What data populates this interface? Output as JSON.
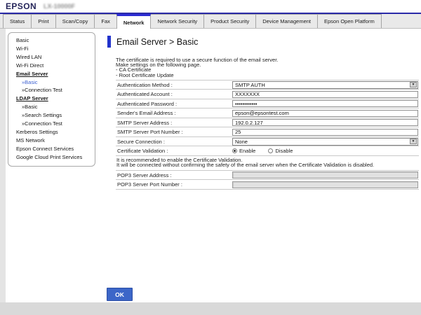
{
  "header": {
    "logo": "EPSON",
    "model": "LX-10000F"
  },
  "tabs": [
    {
      "label": "Status",
      "active": false
    },
    {
      "label": "Print",
      "active": false
    },
    {
      "label": "Scan/Copy",
      "active": false
    },
    {
      "label": "Fax",
      "active": false
    },
    {
      "label": "Network",
      "active": true
    },
    {
      "label": "Network Security",
      "active": false
    },
    {
      "label": "Product Security",
      "active": false
    },
    {
      "label": "Device Management",
      "active": false
    },
    {
      "label": "Epson Open Platform",
      "active": false
    }
  ],
  "sidebar": {
    "items": [
      {
        "label": "Basic",
        "type": "item",
        "active": false
      },
      {
        "label": "Wi-Fi",
        "type": "item",
        "active": false
      },
      {
        "label": "Wired LAN",
        "type": "item",
        "active": false
      },
      {
        "label": "Wi-Fi Direct",
        "type": "item",
        "active": false
      },
      {
        "label": "Email Server",
        "type": "group",
        "active": false
      },
      {
        "label": "»Basic",
        "type": "sub",
        "active": true
      },
      {
        "label": "»Connection Test",
        "type": "sub",
        "active": false
      },
      {
        "label": "LDAP Server",
        "type": "group",
        "active": false
      },
      {
        "label": "»Basic",
        "type": "sub",
        "active": false
      },
      {
        "label": "»Search Settings",
        "type": "sub",
        "active": false
      },
      {
        "label": "»Connection Test",
        "type": "sub",
        "active": false
      },
      {
        "label": "Kerberos Settings",
        "type": "item",
        "active": false
      },
      {
        "label": "MS Network",
        "type": "item",
        "active": false
      },
      {
        "label": "Epson Connect Services",
        "type": "item",
        "active": false
      },
      {
        "label": "Google Cloud Print Services",
        "type": "item",
        "active": false
      }
    ]
  },
  "main": {
    "title": "Email Server > Basic",
    "description": [
      "The certificate is required to use a secure function of the email server.",
      "Make settings on the following page.",
      "- CA Certificate",
      "- Root Certificate Update"
    ],
    "form": {
      "rows": [
        {
          "label": "Authentication Method :",
          "type": "select",
          "value": "SMTP AUTH"
        },
        {
          "label": "Authenticated Account :",
          "type": "text",
          "value": "XXXXXXX"
        },
        {
          "label": "Authenticated Password :",
          "type": "password",
          "value": "••••••••••••"
        },
        {
          "label": "Sender's Email Address :",
          "type": "text",
          "value": "epson@epsontest.com"
        },
        {
          "label": "SMTP Server Address :",
          "type": "text",
          "value": "192.0.2.127"
        },
        {
          "label": "SMTP Server Port Number :",
          "type": "text",
          "value": "25"
        },
        {
          "label": "Secure Connection :",
          "type": "select",
          "value": "None"
        },
        {
          "label": "Certificate Validation :",
          "type": "radio",
          "options": [
            {
              "label": "Enable",
              "checked": true
            },
            {
              "label": "Disable",
              "checked": false
            }
          ]
        },
        {
          "type": "note",
          "lines": [
            "It is recommended to enable the Certificate Validation.",
            "It will be connected without confirming the safety of the email server when the Certificate Validation is disabled."
          ]
        },
        {
          "label": "POP3 Server Address :",
          "type": "text-disabled",
          "value": ""
        },
        {
          "label": "POP3 Server Port Number :",
          "type": "text-disabled",
          "value": ""
        }
      ]
    },
    "ok_button": "OK"
  },
  "ui": {
    "dropdown_arrow": "▼"
  },
  "colors": {
    "top_line": "#2a2aa8",
    "active_tab_accent": "#2b2bd4",
    "title_accent": "#2233cc",
    "ok_button": "#3c66c8",
    "active_link": "#3c5fd0"
  }
}
